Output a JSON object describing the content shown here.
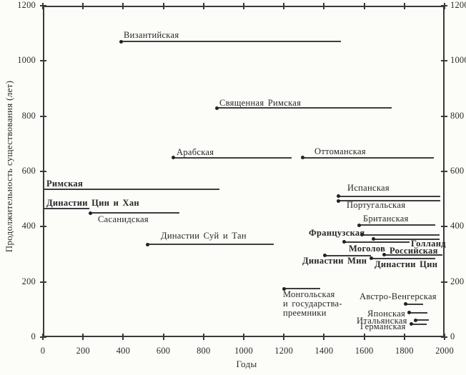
{
  "figure": {
    "background": "#fcfcf9",
    "ink_color": "#3a3a3a",
    "text_color": "#2b2b2b"
  },
  "chart_data": {
    "type": "line",
    "subtype": "timeline-duration (gantt-style, dot marks start of each empire)",
    "title": "",
    "xlabel": "Годы",
    "ylabel": "Продолжительность существования (лет)",
    "xlim": [
      0,
      2000
    ],
    "ylim": [
      0,
      1200
    ],
    "x_ticks": [
      0,
      200,
      400,
      600,
      800,
      1000,
      1200,
      1400,
      1600,
      1800,
      2000
    ],
    "y_ticks": [
      0,
      200,
      400,
      600,
      800,
      1000,
      1200
    ],
    "grid": false,
    "frame": true,
    "tick_labels_both_sides_y": true,
    "legend": "none",
    "series": [
      {
        "name": "byzantine",
        "label": "Византийская",
        "start_year": 390,
        "end_year": 1485,
        "duration_years": 1070,
        "dot": true,
        "bold": false,
        "lx": 173,
        "ly": 43
      },
      {
        "name": "holy-roman",
        "label": "Священная Римская",
        "start_year": 865,
        "end_year": 1735,
        "duration_years": 830,
        "dot": true,
        "bold": false,
        "lx": 307,
        "ly": 138
      },
      {
        "name": "arab",
        "label": "Арабская",
        "start_year": 650,
        "end_year": 1240,
        "duration_years": 650,
        "dot": true,
        "bold": false,
        "lx": 247,
        "ly": 207
      },
      {
        "name": "ottoman",
        "label": "Оттоманская",
        "start_year": 1295,
        "end_year": 1945,
        "duration_years": 650,
        "dot": true,
        "bold": false,
        "lx": 440,
        "ly": 206
      },
      {
        "name": "roman",
        "label": "Римская",
        "start_year": 0,
        "end_year": 880,
        "duration_years": 535,
        "dot": false,
        "bold": true,
        "lx": 65,
        "ly": 251
      },
      {
        "name": "qin-han-dynasties",
        "label": "Династии Цин и Хан",
        "start_year": 0,
        "end_year": 230,
        "duration_years": 465,
        "dot": false,
        "bold": true,
        "lx": 65,
        "ly": 278
      },
      {
        "name": "sasanian",
        "label": "Сасанидская",
        "start_year": 235,
        "end_year": 680,
        "duration_years": 450,
        "dot": true,
        "bold": false,
        "lx": 137,
        "ly": 301
      },
      {
        "name": "sui-tang-dynasties",
        "label": "Династии Суй и Тан",
        "start_year": 520,
        "end_year": 1150,
        "duration_years": 335,
        "dot": true,
        "bold": false,
        "lx": 225,
        "ly": 324
      },
      {
        "name": "spanish",
        "label": "Испанская",
        "start_year": 1470,
        "end_year": 1980,
        "duration_years": 510,
        "dot": true,
        "bold": false,
        "lx": 486,
        "ly": 257
      },
      {
        "name": "portuguese",
        "label": "Португальская",
        "start_year": 1470,
        "end_year": 1980,
        "duration_years": 493,
        "dot": true,
        "bold": false,
        "lx": 485,
        "ly": 281
      },
      {
        "name": "british",
        "label": "Британская",
        "start_year": 1575,
        "end_year": 1955,
        "duration_years": 405,
        "dot": true,
        "bold": false,
        "lx": 508,
        "ly": 300
      },
      {
        "name": "french",
        "label": "Французская",
        "start_year": 1590,
        "end_year": 1975,
        "duration_years": 370,
        "dot": true,
        "bold": true,
        "lx": 432,
        "ly": 320
      },
      {
        "name": "dutch",
        "label": "Голланд",
        "start_year": 1645,
        "end_year": 1975,
        "duration_years": 355,
        "dot": true,
        "bold": true,
        "lx": 575,
        "ly": 335
      },
      {
        "name": "mughal",
        "label": "Моголов",
        "start_year": 1500,
        "end_year": 1825,
        "duration_years": 345,
        "dot": true,
        "bold": true,
        "lx": 488,
        "ly": 342
      },
      {
        "name": "russian",
        "label": "Российская",
        "start_year": 1700,
        "end_year": 1990,
        "duration_years": 298,
        "dot": true,
        "bold": true,
        "lx": 545,
        "ly": 345
      },
      {
        "name": "ming-dynasty",
        "label": "Династии Мин",
        "start_year": 1405,
        "end_year": 1635,
        "duration_years": 295,
        "dot": true,
        "bold": true,
        "lx": 423,
        "ly": 359
      },
      {
        "name": "qing-dynasty",
        "label": "Династии Цин",
        "start_year": 1635,
        "end_year": 1955,
        "duration_years": 285,
        "dot": true,
        "bold": true,
        "lx": 524,
        "ly": 364
      },
      {
        "name": "mongol-successors",
        "label": "Монгольская\nи государства-\nпреемники",
        "start_year": 1200,
        "end_year": 1380,
        "duration_years": 175,
        "dot": true,
        "bold": false,
        "lx": 396,
        "ly": 406
      },
      {
        "name": "austro-hungarian",
        "label": "Австро-Венгерская",
        "start_year": 1805,
        "end_year": 1895,
        "duration_years": 120,
        "dot": true,
        "bold": false,
        "lx": 503,
        "ly": 409
      },
      {
        "name": "japanese",
        "label": "Японская",
        "start_year": 1825,
        "end_year": 1915,
        "duration_years": 88,
        "dot": true,
        "bold": false,
        "lx": 514,
        "ly": 433
      },
      {
        "name": "italian",
        "label": "Итальянская",
        "start_year": 1855,
        "end_year": 1920,
        "duration_years": 62,
        "dot": true,
        "bold": false,
        "lx": 499,
        "ly": 443
      },
      {
        "name": "german",
        "label": "Германская",
        "start_year": 1835,
        "end_year": 1910,
        "duration_years": 47,
        "dot": true,
        "bold": false,
        "lx": 504,
        "ly": 451
      }
    ]
  }
}
